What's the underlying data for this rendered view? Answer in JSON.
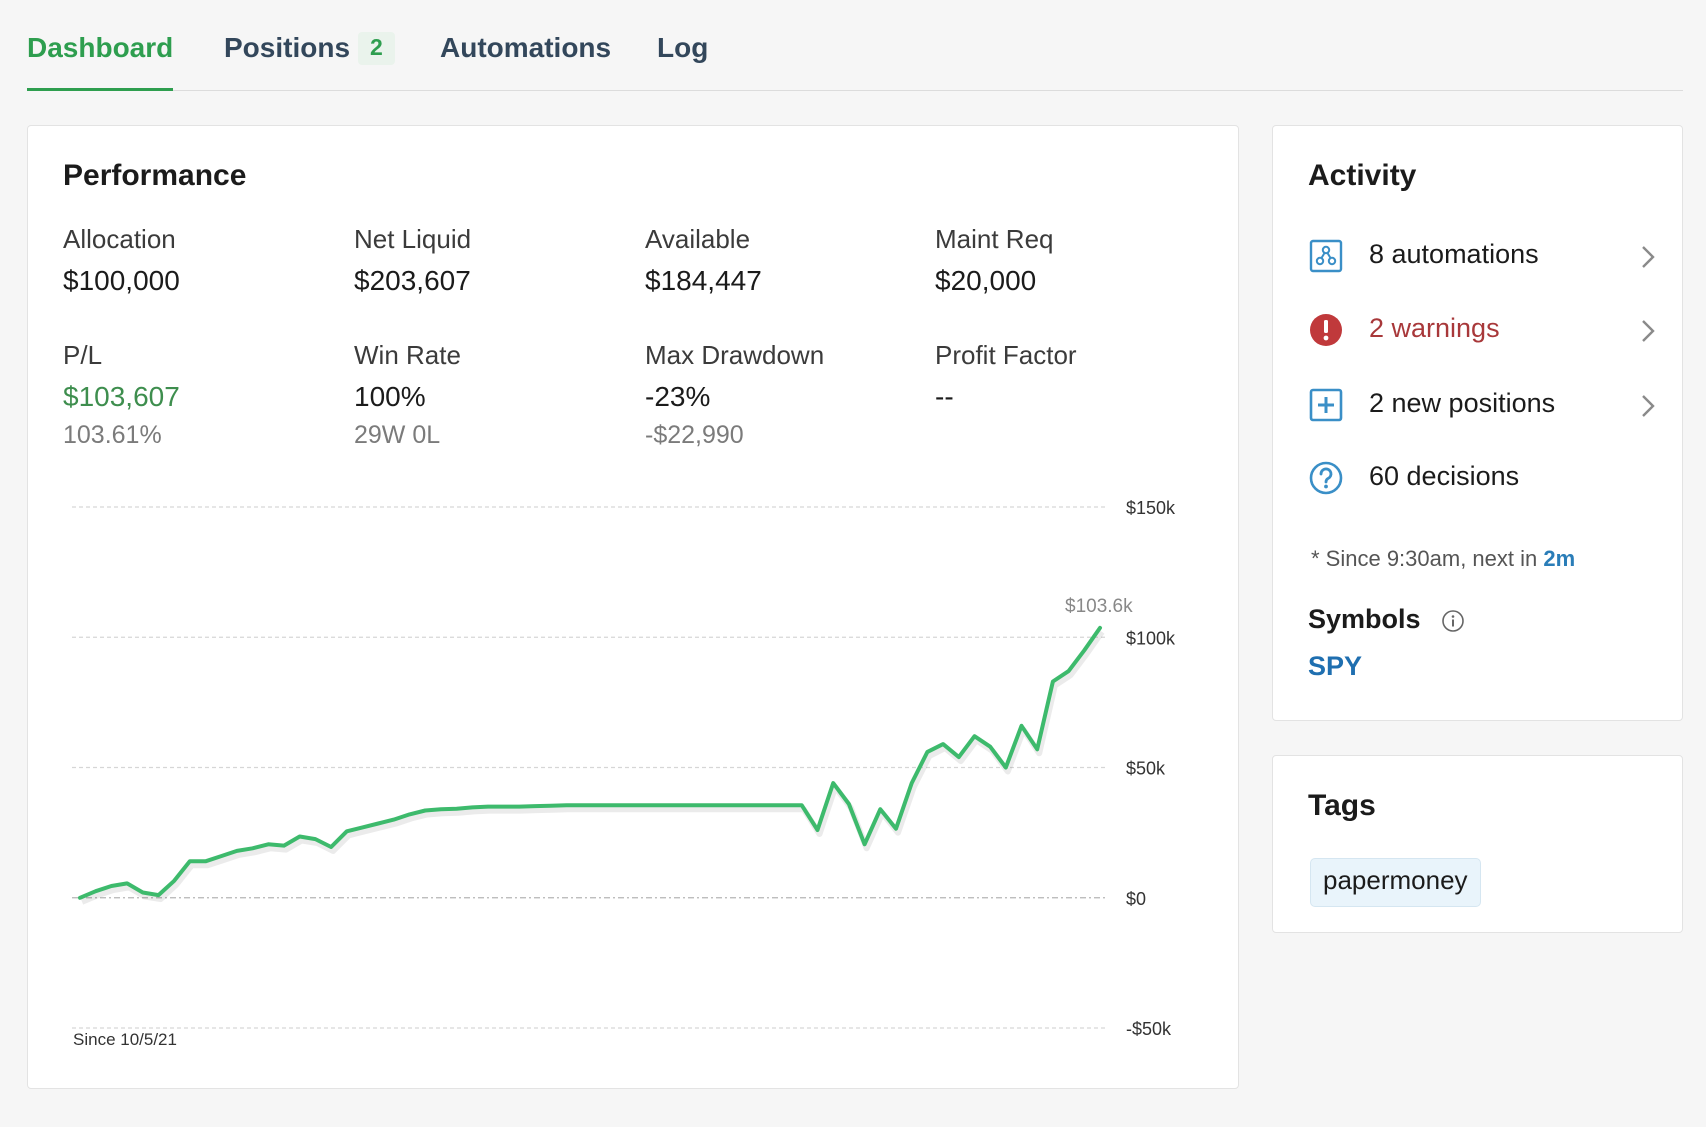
{
  "tabs": [
    {
      "label": "Dashboard",
      "active": true
    },
    {
      "label": "Positions",
      "count": "2"
    },
    {
      "label": "Automations"
    },
    {
      "label": "Log"
    }
  ],
  "performance": {
    "title": "Performance",
    "metrics": [
      {
        "label": "Allocation",
        "value": "$100,000"
      },
      {
        "label": "Net Liquid",
        "value": "$203,607"
      },
      {
        "label": "Available",
        "value": "$184,447"
      },
      {
        "label": "Maint Req",
        "value": "$20,000"
      },
      {
        "label": "P/L",
        "value": "$103,607",
        "sub": "103.61%"
      },
      {
        "label": "Win Rate",
        "value": "100%",
        "sub": "29W 0L"
      },
      {
        "label": "Max Drawdown",
        "value": "-23%",
        "sub": "-$22,990"
      },
      {
        "label": "Profit Factor",
        "value": "--"
      }
    ]
  },
  "chart_data": {
    "type": "line",
    "ytick_labels": [
      "$150k",
      "$100k",
      "$50k",
      "$0",
      "-$50k"
    ],
    "yticks": [
      150,
      100,
      50,
      0,
      -50
    ],
    "ylim": [
      -50,
      150
    ],
    "grid": true,
    "footer": "Since 10/5/21",
    "last_label": "$103.6k",
    "color": "#3dba6c",
    "values": [
      0,
      2.5,
      4.5,
      5.5,
      2,
      1,
      6.5,
      14,
      14,
      16,
      18,
      19,
      20.5,
      20,
      23.5,
      22.5,
      19.5,
      25.5,
      27,
      28.5,
      30,
      32,
      33.5,
      34,
      34.2,
      34.7,
      35,
      35,
      35,
      35.2,
      35.3,
      35.5,
      35.5,
      35.5,
      35.5,
      35.5,
      35.5,
      35.5,
      35.5,
      35.5,
      35.5,
      35.5,
      35.5,
      35.5,
      35.5,
      35.5,
      35.5,
      26,
      44,
      36,
      20.5,
      34,
      26.5,
      44,
      56,
      59,
      54,
      62,
      58,
      50,
      66,
      57,
      83,
      87,
      95,
      103.6
    ]
  },
  "activity": {
    "title": "Activity",
    "items": [
      {
        "label": "8 automations",
        "icon": "automation-icon"
      },
      {
        "label": "2 warnings",
        "icon": "warning-icon"
      },
      {
        "label": "2 new positions",
        "icon": "plus-box-icon"
      },
      {
        "label": "60 decisions",
        "icon": "question-icon"
      }
    ],
    "note_prefix": "* Since 9:30am, next in ",
    "note_highlight": "2m",
    "symbols_title": "Symbols",
    "symbol": "SPY"
  },
  "tags": {
    "title": "Tags",
    "items": [
      "papermoney"
    ]
  },
  "colors": {
    "accent": "#2e9e4f",
    "warning": "#c0393b",
    "link": "#1f6fb0",
    "icon": "#3a8fc7"
  }
}
